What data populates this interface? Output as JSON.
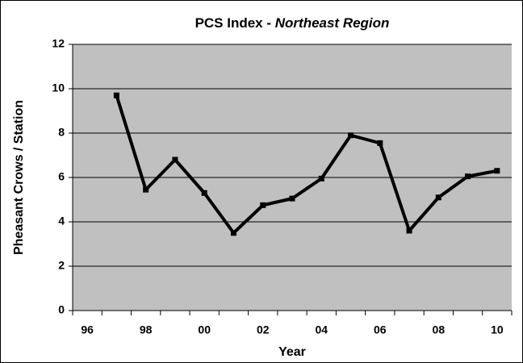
{
  "chart_data": {
    "type": "line",
    "title": "PCS Index - ",
    "title_italic": "Northeast Region",
    "x_label": "Year",
    "y_label": "Pheasant Crows / Station",
    "categories": [
      "96",
      null,
      "98",
      null,
      "00",
      null,
      "02",
      null,
      "04",
      null,
      "06",
      null,
      "08",
      null,
      "10"
    ],
    "series": [
      {
        "name": "PCS Index",
        "color": "#000000",
        "values": [
          null,
          9.7,
          5.45,
          6.8,
          5.3,
          3.5,
          4.75,
          5.05,
          5.95,
          7.9,
          7.55,
          3.6,
          5.1,
          6.05,
          6.3
        ]
      }
    ],
    "ylim": [
      0,
      12
    ],
    "yticks": [
      0,
      2,
      4,
      6,
      8,
      10,
      12
    ],
    "grid": true,
    "plot_color": "#c0c0c0"
  }
}
